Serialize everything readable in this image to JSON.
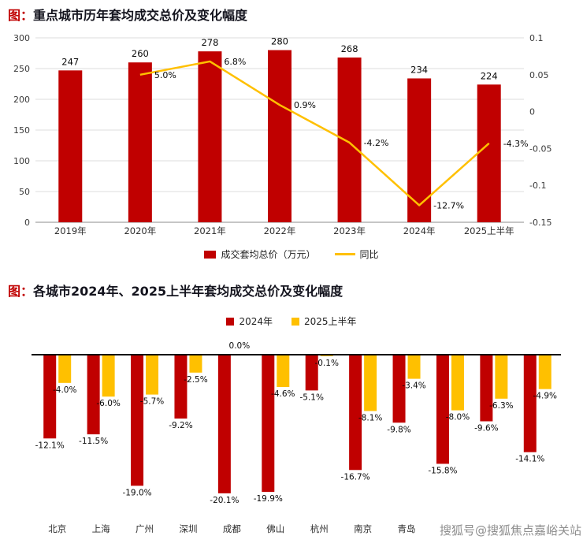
{
  "page": {
    "background": "#ffffff",
    "watermark": "搜狐号@搜狐焦点嘉峪关站"
  },
  "colors": {
    "accent_red": "#c00000",
    "bar_red": "#c00000",
    "line_yellow": "#ffc000"
  },
  "chart_data": [
    {
      "type": "bar",
      "subtype": "bar+line combo",
      "title_prefix": "图：",
      "title": "重点城市历年套均成交总价及变化幅度",
      "categories": [
        "2019年",
        "2020年",
        "2021年",
        "2022年",
        "2023年",
        "2024年",
        "2025上半年"
      ],
      "bar_series": {
        "name": "成交套均总价（万元）",
        "color": "#c00000",
        "values": [
          247,
          260,
          278,
          280,
          268,
          234,
          224
        ]
      },
      "line_series": {
        "name": "同比",
        "color": "#ffc000",
        "values": [
          null,
          0.05,
          0.068,
          0.009,
          -0.042,
          -0.127,
          -0.043
        ],
        "labels": [
          "",
          "5.0%",
          "6.8%",
          "0.9%",
          "-4.2%",
          "-12.7%",
          "-4.3%"
        ]
      },
      "left_axis": {
        "min": 0,
        "max": 300,
        "ticks": [
          0,
          50,
          100,
          150,
          200,
          250,
          300
        ]
      },
      "right_axis": {
        "min": -0.15,
        "max": 0.1,
        "tick_labels": [
          "0.1",
          "0.05",
          "0",
          "-0.05",
          "-0.1",
          "-0.15"
        ]
      },
      "grid": true,
      "legend_position": "bottom"
    },
    {
      "type": "bar",
      "title_prefix": "图：",
      "title": "各城市2024年、2025上半年套均成交总价及变化幅度",
      "categories": [
        "北京",
        "上海",
        "广州",
        "深圳",
        "成都",
        "佛山",
        "杭州",
        "南京",
        "青岛",
        "",
        "",
        ""
      ],
      "series": [
        {
          "name": "2024年",
          "color": "#c00000",
          "values": [
            -12.1,
            -11.5,
            -19.0,
            -9.2,
            -20.1,
            -19.9,
            -5.1,
            -16.7,
            -9.8,
            -15.8,
            -9.6,
            -14.1
          ]
        },
        {
          "name": "2025上半年",
          "color": "#ffc000",
          "values": [
            -4.0,
            -6.0,
            -5.7,
            -2.5,
            0.0,
            -4.6,
            -0.1,
            -8.1,
            -3.4,
            -8.0,
            -6.3,
            -4.9
          ]
        }
      ],
      "value_suffix": "%",
      "ylim": [
        -22,
        0
      ],
      "grid": false,
      "legend_position": "top"
    }
  ]
}
